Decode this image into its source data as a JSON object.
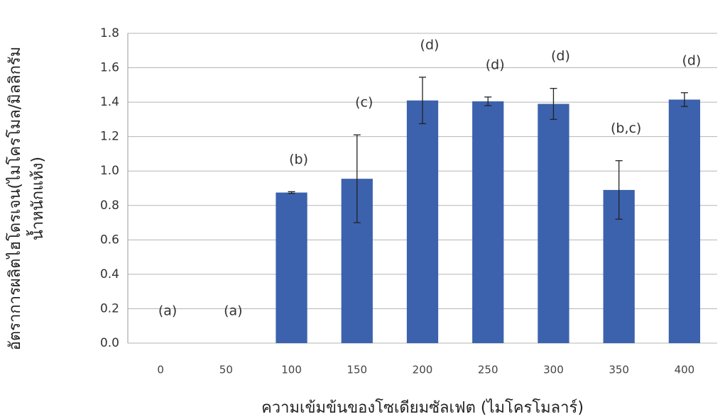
{
  "chart_data": {
    "type": "bar",
    "xlabel": "ความเข้มข้นของโซเดียมซัลเฟต (ไมโครโมลาร์)",
    "ylabel": [
      "อัตราการผลิตไฮโดรเจน(ไมโครโมล/มิลลิกรัม",
      "น้ำหนักแห้ง)"
    ],
    "categories": [
      "0",
      "50",
      "100",
      "150",
      "200",
      "250",
      "300",
      "350",
      "400"
    ],
    "values": [
      0,
      0,
      0.875,
      0.955,
      1.41,
      1.405,
      1.39,
      0.89,
      1.415
    ],
    "errors": [
      0,
      0,
      0.005,
      0.255,
      0.135,
      0.025,
      0.09,
      0.17,
      0.04
    ],
    "annotations": [
      "(a)",
      "(a)",
      "(b)",
      "(c)",
      "(d)",
      "(d)",
      "(d)",
      "(b,c)",
      "(d)"
    ],
    "color": "#3c62ad",
    "ylim": [
      0,
      1.8
    ],
    "yticks": [
      {
        "value": 0,
        "label": "0.0"
      },
      0.2,
      0.4,
      0.6,
      0.8,
      {
        "value": 1,
        "label": "1.0"
      },
      1.2,
      1.4,
      1.6,
      1.8
    ],
    "grid": true
  }
}
